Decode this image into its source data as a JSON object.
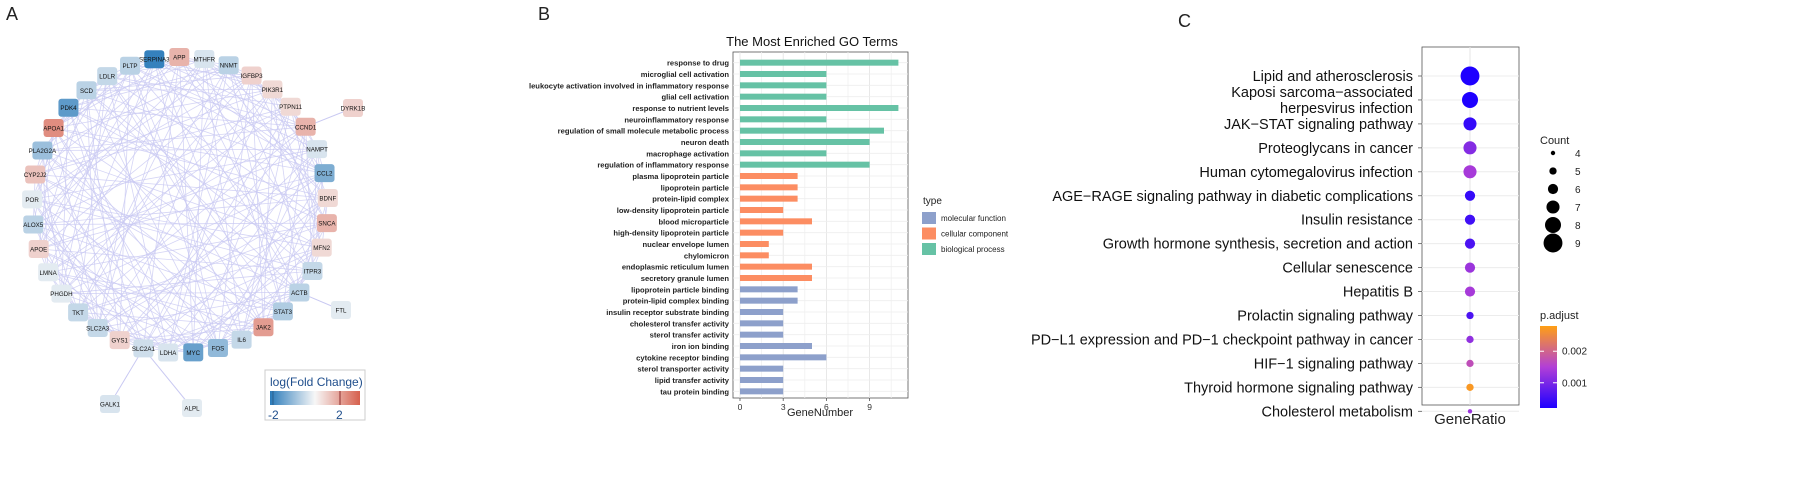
{
  "panels": {
    "a": {
      "letter": "A",
      "legend": {
        "title": "log(Fold Change)",
        "min_label": "-2",
        "max_label": "2",
        "min": -2,
        "max": 2,
        "colors": {
          "low": "#2b7bba",
          "mid": "#f7f7f7",
          "high": "#d6604d"
        }
      },
      "edge_color": "#c9c9f2",
      "nodes": [
        {
          "label": "SERPINA3",
          "fc": -1.9,
          "ring": true
        },
        {
          "label": "APP",
          "fc": 0.9,
          "ring": true
        },
        {
          "label": "MTHFR",
          "fc": -0.3,
          "ring": true
        },
        {
          "label": "NNMT",
          "fc": -0.6,
          "ring": true
        },
        {
          "label": "IGFBP3",
          "fc": 0.5,
          "ring": true
        },
        {
          "label": "PIK3R1",
          "fc": 0.4,
          "ring": true
        },
        {
          "label": "PTPN11",
          "fc": 0.4,
          "ring": true
        },
        {
          "label": "CCND1",
          "fc": 0.9,
          "ring": true
        },
        {
          "label": "NAMPT",
          "fc": -0.3,
          "ring": true
        },
        {
          "label": "CCL2",
          "fc": -1.2,
          "ring": true
        },
        {
          "label": "BDNF",
          "fc": 0.4,
          "ring": true
        },
        {
          "label": "SNCA",
          "fc": 0.9,
          "ring": true
        },
        {
          "label": "MFN2",
          "fc": 0.4,
          "ring": true
        },
        {
          "label": "ITPR3",
          "fc": -0.5,
          "ring": true
        },
        {
          "label": "ACTB",
          "fc": -0.6,
          "ring": true
        },
        {
          "label": "STAT3",
          "fc": -0.7,
          "ring": true
        },
        {
          "label": "JAK2",
          "fc": 1.2,
          "ring": true
        },
        {
          "label": "IL6",
          "fc": -0.5,
          "ring": true
        },
        {
          "label": "FOS",
          "fc": -1.0,
          "ring": true
        },
        {
          "label": "MYC",
          "fc": -1.4,
          "ring": true
        },
        {
          "label": "LDHA",
          "fc": -0.3,
          "ring": true
        },
        {
          "label": "SLC2A1",
          "fc": -0.4,
          "ring": true
        },
        {
          "label": "GYS1",
          "fc": 0.5,
          "ring": true
        },
        {
          "label": "SLC2A3",
          "fc": -0.5,
          "ring": true
        },
        {
          "label": "TKT",
          "fc": -0.5,
          "ring": true
        },
        {
          "label": "PHGDH",
          "fc": -0.2,
          "ring": true
        },
        {
          "label": "LMNA",
          "fc": -0.2,
          "ring": true
        },
        {
          "label": "APOE",
          "fc": 0.5,
          "ring": true
        },
        {
          "label": "ALOX5",
          "fc": -0.6,
          "ring": true
        },
        {
          "label": "POR",
          "fc": -0.2,
          "ring": true
        },
        {
          "label": "CYP2J2",
          "fc": 0.7,
          "ring": true
        },
        {
          "label": "PLA2G2A",
          "fc": -0.9,
          "ring": true
        },
        {
          "label": "APOA1",
          "fc": 1.4,
          "ring": true
        },
        {
          "label": "PDK4",
          "fc": -1.5,
          "ring": true
        },
        {
          "label": "SCD",
          "fc": -0.6,
          "ring": true
        },
        {
          "label": "LDLR",
          "fc": -0.5,
          "ring": true
        },
        {
          "label": "PLTP",
          "fc": -0.6,
          "ring": true
        },
        {
          "label": "DYRK1B",
          "fc": 0.5,
          "ring": false
        },
        {
          "label": "FTL",
          "fc": -0.2,
          "ring": false
        },
        {
          "label": "GALK1",
          "fc": -0.3,
          "ring": false
        },
        {
          "label": "ALPL",
          "fc": -0.2,
          "ring": false
        }
      ]
    },
    "b": {
      "letter": "B",
      "chart_data": {
        "type": "bar",
        "title": "The Most Enriched GO Terms",
        "xlabel": "GeneNumber",
        "ylabel": "",
        "xlim": [
          0,
          11.5
        ],
        "xticks": [
          0,
          3,
          6,
          9
        ],
        "grid": true,
        "legend_title": "type",
        "series": [
          {
            "name": "molecular function",
            "color": "#8da0cb"
          },
          {
            "name": "cellular component",
            "color": "#fc8d62"
          },
          {
            "name": "biological process",
            "color": "#66c2a5"
          }
        ],
        "bars": [
          {
            "term": "response to drug",
            "value": 11,
            "type": "biological process"
          },
          {
            "term": "microglial cell activation",
            "value": 6,
            "type": "biological process"
          },
          {
            "term": "leukocyte activation involved in inflammatory response",
            "value": 6,
            "type": "biological process"
          },
          {
            "term": "glial cell activation",
            "value": 6,
            "type": "biological process"
          },
          {
            "term": "response to nutrient levels",
            "value": 11,
            "type": "biological process"
          },
          {
            "term": "neuroinflammatory response",
            "value": 6,
            "type": "biological process"
          },
          {
            "term": "regulation of small molecule metabolic process",
            "value": 10,
            "type": "biological process"
          },
          {
            "term": "neuron death",
            "value": 9,
            "type": "biological process"
          },
          {
            "term": "macrophage activation",
            "value": 6,
            "type": "biological process"
          },
          {
            "term": "regulation of inflammatory response",
            "value": 9,
            "type": "biological process"
          },
          {
            "term": "plasma lipoprotein particle",
            "value": 4,
            "type": "cellular component"
          },
          {
            "term": "lipoprotein particle",
            "value": 4,
            "type": "cellular component"
          },
          {
            "term": "protein-lipid complex",
            "value": 4,
            "type": "cellular component"
          },
          {
            "term": "low-density lipoprotein particle",
            "value": 3,
            "type": "cellular component"
          },
          {
            "term": "blood microparticle",
            "value": 5,
            "type": "cellular component"
          },
          {
            "term": "high-density lipoprotein particle",
            "value": 3,
            "type": "cellular component"
          },
          {
            "term": "nuclear envelope lumen",
            "value": 2,
            "type": "cellular component"
          },
          {
            "term": "chylomicron",
            "value": 2,
            "type": "cellular component"
          },
          {
            "term": "endoplasmic reticulum lumen",
            "value": 5,
            "type": "cellular component"
          },
          {
            "term": "secretory granule lumen",
            "value": 5,
            "type": "cellular component"
          },
          {
            "term": "lipoprotein particle binding",
            "value": 4,
            "type": "molecular function"
          },
          {
            "term": "protein-lipid complex binding",
            "value": 4,
            "type": "molecular function"
          },
          {
            "term": "insulin receptor substrate binding",
            "value": 3,
            "type": "molecular function"
          },
          {
            "term": "cholesterol transfer activity",
            "value": 3,
            "type": "molecular function"
          },
          {
            "term": "sterol transfer activity",
            "value": 3,
            "type": "molecular function"
          },
          {
            "term": "iron ion binding",
            "value": 5,
            "type": "molecular function"
          },
          {
            "term": "cytokine receptor binding",
            "value": 6,
            "type": "molecular function"
          },
          {
            "term": "sterol transporter activity",
            "value": 3,
            "type": "molecular function"
          },
          {
            "term": "lipid transfer activity",
            "value": 3,
            "type": "molecular function"
          },
          {
            "term": "tau protein binding",
            "value": 3,
            "type": "molecular function"
          }
        ]
      }
    },
    "c": {
      "letter": "C",
      "chart_data": {
        "type": "scatter",
        "title": "",
        "xlabel": "GeneRatio",
        "ylabel": "",
        "size_legend": {
          "title": "Count",
          "values": [
            4,
            5,
            6,
            7,
            8,
            9
          ]
        },
        "color_legend": {
          "title": "p.adjust",
          "ticks": [
            {
              "value": 0.002,
              "label": "0.002"
            },
            {
              "value": 0.001,
              "label": "0.001"
            }
          ],
          "range": [
            0.0002,
            0.0028
          ],
          "colors": {
            "low": "#1e00ff",
            "mid": "#b23fd6",
            "high": "#ff9f14"
          }
        },
        "points": [
          {
            "term": "Lipid and atherosclerosis",
            "count": 9,
            "p_adjust": 5e-05
          },
          {
            "term": "Kaposi sarcoma−associated\nherpesvirus infection",
            "count": 8,
            "p_adjust": 0.0002
          },
          {
            "term": "JAK−STAT signaling pathway",
            "count": 7,
            "p_adjust": 0.0004
          },
          {
            "term": "Proteoglycans in cancer",
            "count": 7,
            "p_adjust": 0.0011
          },
          {
            "term": "Human cytomegalovirus infection",
            "count": 7,
            "p_adjust": 0.0014
          },
          {
            "term": "AGE−RAGE signaling pathway in diabetic complications",
            "count": 6,
            "p_adjust": 0.0004
          },
          {
            "term": "Insulin resistance",
            "count": 6,
            "p_adjust": 0.0005
          },
          {
            "term": "Growth hormone synthesis, secretion and action",
            "count": 6,
            "p_adjust": 0.0006
          },
          {
            "term": "Cellular senescence",
            "count": 6,
            "p_adjust": 0.0013
          },
          {
            "term": "Hepatitis B",
            "count": 6,
            "p_adjust": 0.0014
          },
          {
            "term": "Prolactin signaling pathway",
            "count": 5,
            "p_adjust": 0.0006
          },
          {
            "term": "PD−L1 expression and PD−1 checkpoint pathway in cancer",
            "count": 5,
            "p_adjust": 0.0012
          },
          {
            "term": "HIF−1 signaling pathway",
            "count": 5,
            "p_adjust": 0.0017
          },
          {
            "term": "Thyroid hormone signaling pathway",
            "count": 5,
            "p_adjust": 0.0027
          },
          {
            "term": "Cholesterol metabolism",
            "count": 4,
            "p_adjust": 0.0013
          }
        ]
      }
    }
  }
}
